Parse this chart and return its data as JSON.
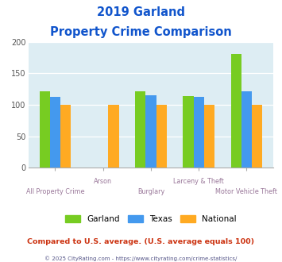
{
  "title_line1": "2019 Garland",
  "title_line2": "Property Crime Comparison",
  "categories": [
    "All Property Crime",
    "Arson",
    "Burglary",
    "Larceny & Theft",
    "Motor Vehicle Theft"
  ],
  "garland": [
    122,
    0,
    121,
    114,
    181
  ],
  "texas": [
    113,
    0,
    115,
    112,
    121
  ],
  "national": [
    100,
    100,
    100,
    100,
    100
  ],
  "garland_color": "#77cc22",
  "texas_color": "#4499ee",
  "national_color": "#ffaa22",
  "bg_color": "#ddedf3",
  "title_color": "#1155cc",
  "xlabel_color": "#997799",
  "legend_labels": [
    "Garland",
    "Texas",
    "National"
  ],
  "footer_text": "Compared to U.S. average. (U.S. average equals 100)",
  "footer_color": "#cc3311",
  "credit_text": "© 2025 CityRating.com - https://www.cityrating.com/crime-statistics/",
  "credit_color": "#555588",
  "ylim": [
    0,
    200
  ],
  "yticks": [
    0,
    50,
    100,
    150,
    200
  ],
  "bar_width": 0.22
}
